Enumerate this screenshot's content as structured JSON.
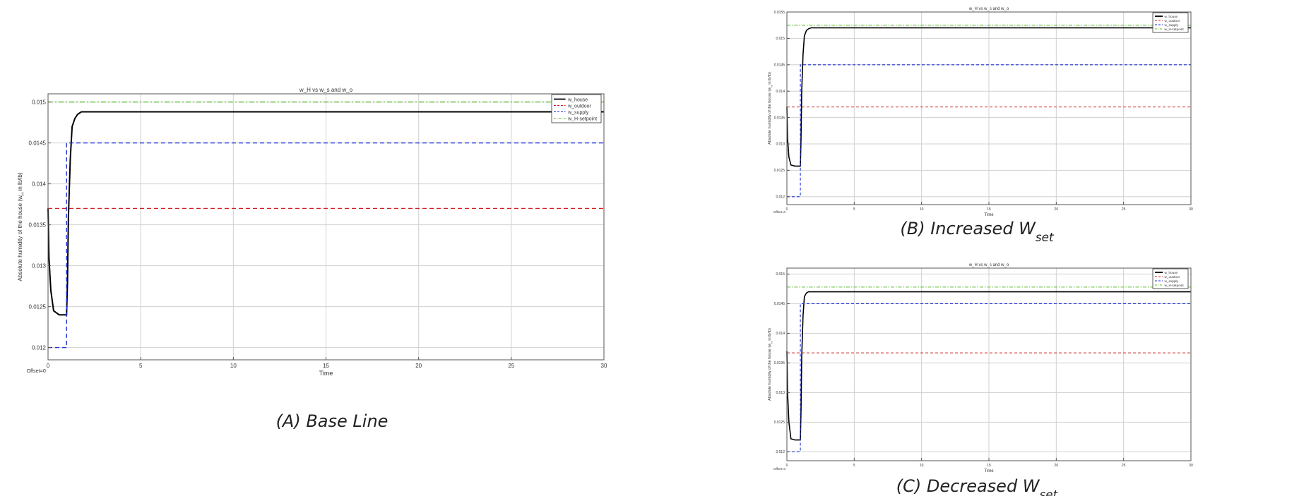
{
  "chart_data": [
    {
      "type": "line",
      "title": "w_H vs w_s and w_o",
      "xlabel": "Time",
      "ylabel": "Absolute humidity of the house (w",
      "ylabel_sub": "H",
      "ylabel_tail": " in lb/lb)",
      "offset_label": "Offset=0",
      "caption": "(A) Base Line",
      "xlim": [
        0,
        30
      ],
      "ylim": [
        0.01185,
        0.0151
      ],
      "x_ticks": [
        0,
        5,
        10,
        15,
        20,
        25,
        30
      ],
      "y_ticks": [
        0.012,
        0.0125,
        0.013,
        0.0135,
        0.014,
        0.0145,
        0.015
      ],
      "y_tick_labels": [
        "0.012",
        "0.0125",
        "0.013",
        "0.0135",
        "0.014",
        "0.0145",
        "0.015"
      ],
      "grid": true,
      "legend_position": "top-right",
      "series": [
        {
          "name": "w_house",
          "color": "#000000",
          "style": "solid",
          "x": [
            0,
            0.05,
            0.15,
            0.3,
            0.6,
            1.0,
            1.05,
            1.1,
            1.2,
            1.3,
            1.45,
            1.6,
            1.8,
            2.2,
            30
          ],
          "y": [
            0.0137,
            0.0131,
            0.0127,
            0.01245,
            0.0124,
            0.0124,
            0.0128,
            0.0136,
            0.0143,
            0.0147,
            0.0148,
            0.01485,
            0.01488,
            0.01488,
            0.01488
          ]
        },
        {
          "name": "w_outdoor",
          "color": "#cc2222",
          "style": "dashed",
          "x": [
            0,
            30
          ],
          "y": [
            0.0137,
            0.0137
          ]
        },
        {
          "name": "w_supply",
          "color": "#1f2fd6",
          "style": "dashed",
          "x": [
            0,
            1.0,
            1.0,
            30
          ],
          "y": [
            0.012,
            0.012,
            0.0145,
            0.0145
          ]
        },
        {
          "name": "w_H-setpoint",
          "color": "#5bbd2f",
          "style": "dashdot",
          "x": [
            0,
            30
          ],
          "y": [
            0.015,
            0.015
          ]
        }
      ]
    },
    {
      "type": "line",
      "title": "w_H vs w_s and w_o",
      "xlabel": "Time",
      "ylabel": "Absolute humidity of the house (w",
      "ylabel_sub": "H",
      "ylabel_tail": " in lb/lb)",
      "offset_label": "Offset=0",
      "caption": "(B) Increased W",
      "caption_sub": "set",
      "xlim": [
        0,
        30
      ],
      "ylim": [
        0.01185,
        0.0155
      ],
      "x_ticks": [
        0,
        5,
        10,
        15,
        20,
        25,
        30
      ],
      "y_ticks": [
        0.012,
        0.0125,
        0.013,
        0.0135,
        0.014,
        0.0145,
        0.015,
        0.0155
      ],
      "y_tick_labels": [
        "0.012",
        "0.0125",
        "0.013",
        "0.0135",
        "0.014",
        "0.0145",
        "0.015",
        "0.0155"
      ],
      "grid": true,
      "legend_position": "top-right",
      "series": [
        {
          "name": "w_house",
          "color": "#000000",
          "style": "solid",
          "x": [
            0,
            0.05,
            0.15,
            0.3,
            0.6,
            1.0,
            1.05,
            1.1,
            1.2,
            1.3,
            1.45,
            1.6,
            1.8,
            2.2,
            30
          ],
          "y": [
            0.0137,
            0.0131,
            0.01275,
            0.0126,
            0.01258,
            0.01258,
            0.0131,
            0.014,
            0.0147,
            0.01505,
            0.01515,
            0.01518,
            0.0152,
            0.0152,
            0.0152
          ]
        },
        {
          "name": "w_outdoor",
          "color": "#cc2222",
          "style": "dashed",
          "x": [
            0,
            30
          ],
          "y": [
            0.0137,
            0.0137
          ]
        },
        {
          "name": "w_supply",
          "color": "#1f2fd6",
          "style": "dashed",
          "x": [
            0,
            1.0,
            1.0,
            30
          ],
          "y": [
            0.012,
            0.012,
            0.0145,
            0.0145
          ]
        },
        {
          "name": "w_H-setpoint",
          "color": "#5bbd2f",
          "style": "dashdot",
          "x": [
            0,
            30
          ],
          "y": [
            0.01525,
            0.01525
          ]
        }
      ]
    },
    {
      "type": "line",
      "title": "w_H vs w_s and w_o",
      "xlabel": "Time",
      "ylabel": "Absolute humidity of the house (w",
      "ylabel_sub": "H",
      "ylabel_tail": " in lb/lb)",
      "offset_label": "Offset=0",
      "caption": "(C) Decreased W",
      "caption_sub": "set",
      "xlim": [
        0,
        30
      ],
      "ylim": [
        0.01185,
        0.0151
      ],
      "x_ticks": [
        0,
        5,
        10,
        15,
        20,
        25,
        30
      ],
      "y_ticks": [
        0.012,
        0.0125,
        0.013,
        0.0135,
        0.014,
        0.0145,
        0.015
      ],
      "y_tick_labels": [
        "0.012",
        "0.0125",
        "0.013",
        "0.0135",
        "0.014",
        "0.0145",
        "0.015"
      ],
      "grid": true,
      "legend_position": "top-right",
      "series": [
        {
          "name": "w_house",
          "color": "#000000",
          "style": "solid",
          "x": [
            0,
            0.05,
            0.15,
            0.3,
            0.6,
            1.0,
            1.05,
            1.1,
            1.2,
            1.3,
            1.45,
            1.6,
            1.8,
            2.2,
            30
          ],
          "y": [
            0.0137,
            0.013,
            0.0125,
            0.01222,
            0.0122,
            0.0122,
            0.0127,
            0.0136,
            0.0143,
            0.01462,
            0.01468,
            0.0147,
            0.0147,
            0.0147,
            0.0147
          ]
        },
        {
          "name": "w_outdoor",
          "color": "#cc2222",
          "style": "dashed",
          "x": [
            0,
            30
          ],
          "y": [
            0.01367,
            0.01367
          ]
        },
        {
          "name": "w_supply",
          "color": "#1f2fd6",
          "style": "dashed",
          "x": [
            0,
            1.0,
            1.0,
            30
          ],
          "y": [
            0.012,
            0.012,
            0.0145,
            0.0145
          ]
        },
        {
          "name": "w_H-setpoint",
          "color": "#5bbd2f",
          "style": "dashdot",
          "x": [
            0,
            30
          ],
          "y": [
            0.01478,
            0.01478
          ]
        }
      ]
    }
  ]
}
